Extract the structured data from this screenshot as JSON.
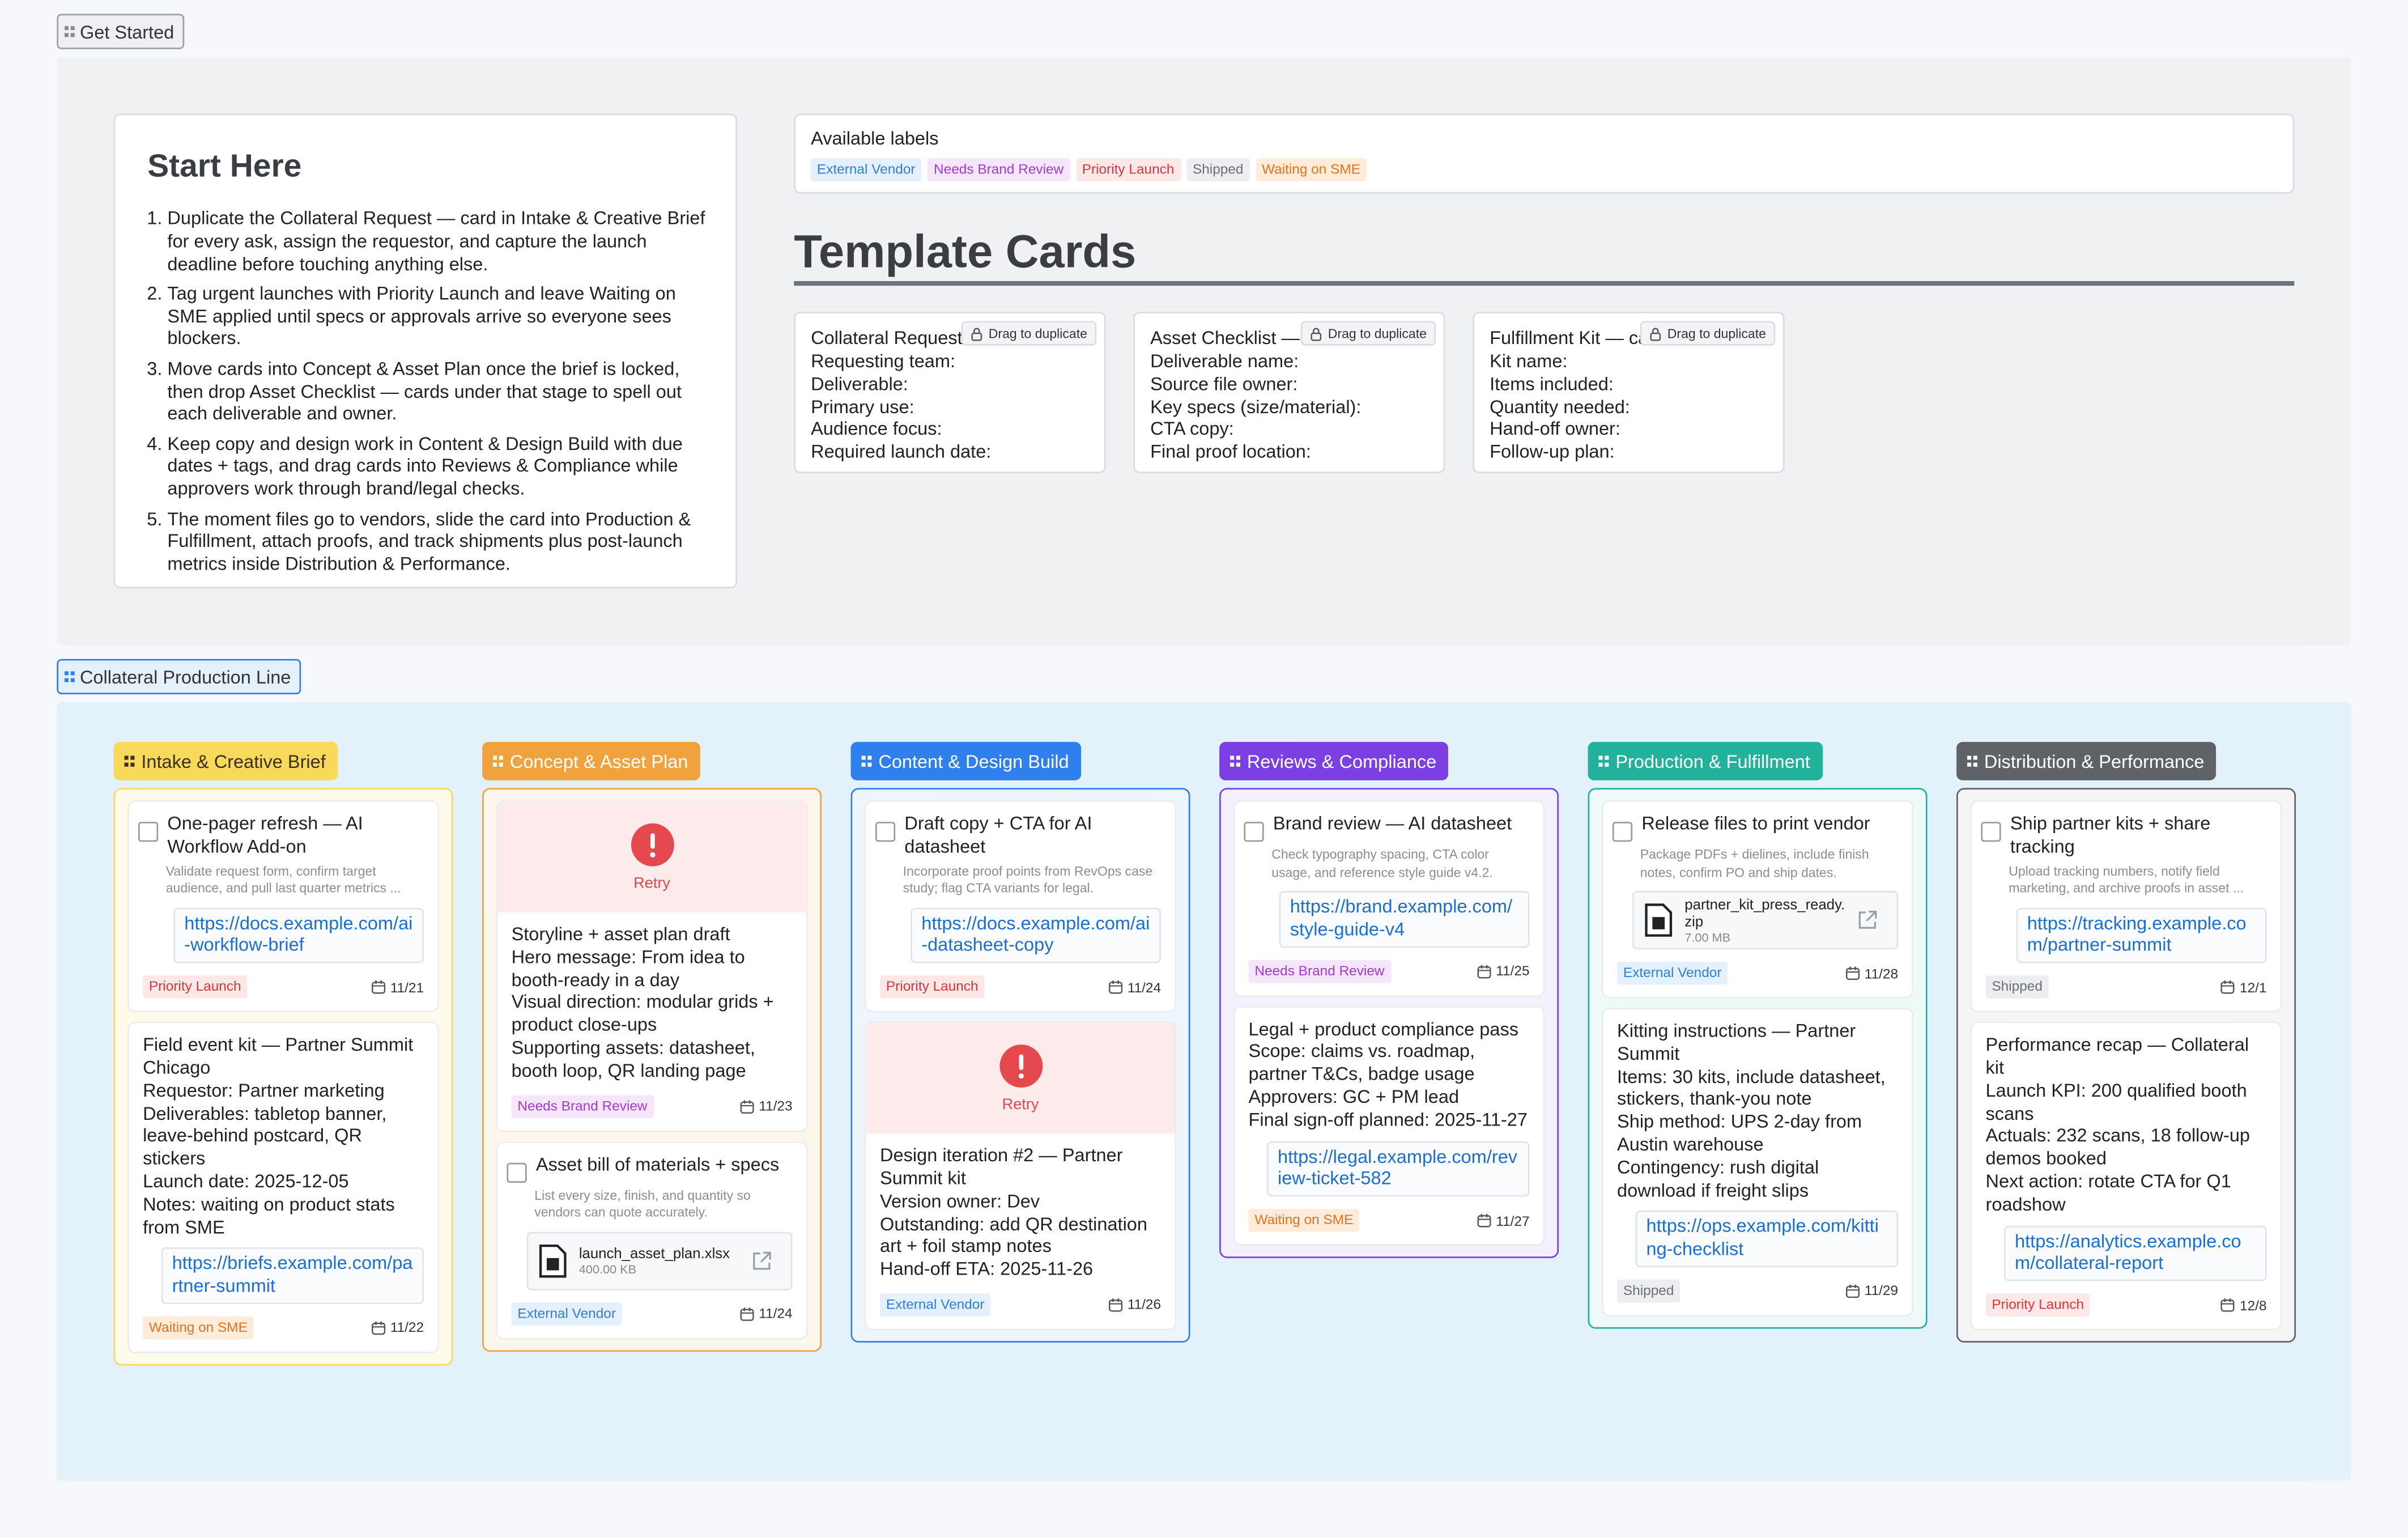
{
  "get_started": {
    "tab": "Get Started",
    "start_here": {
      "title": "Start Here",
      "steps": [
        "Duplicate the Collateral Request — card in Intake & Creative Brief for every ask, assign the requestor, and capture the launch deadline before touching anything else.",
        "Tag urgent launches with Priority Launch and leave Waiting on SME applied until specs or approvals arrive so everyone sees blockers.",
        "Move cards into Concept & Asset Plan once the brief is locked, then drop Asset Checklist — cards under that stage to spell out each deliverable and owner.",
        "Keep copy and design work in Content & Design Build with due dates + tags, and drag cards into Reviews & Compliance while approvers work through brand/legal checks.",
        "The moment files go to vendors, slide the card into Production & Fulfillment, attach proofs, and track shipments plus post-launch metrics inside Distribution & Performance."
      ]
    },
    "labels": {
      "title": "Available labels",
      "items": [
        {
          "name": "External Vendor",
          "color": "#2f7fd8",
          "background": "#e4f0fc"
        },
        {
          "name": "Needs Brand Review",
          "color": "#a23ccf",
          "background": "#f5e6fb"
        },
        {
          "name": "Priority Launch",
          "color": "#d9363e",
          "background": "#fde8e8"
        },
        {
          "name": "Shipped",
          "color": "#6b6f76",
          "background": "#eceef0"
        },
        {
          "name": "Waiting on SME",
          "color": "#e3741b",
          "background": "#fdecd9"
        }
      ]
    },
    "templates": {
      "title": "Template Cards",
      "cards": [
        {
          "title": "Collateral Request — card",
          "action": "Drag to duplicate",
          "fields": [
            "Requesting team:",
            "Deliverable:",
            "Primary use:",
            "Audience focus:",
            "Required launch date:"
          ]
        },
        {
          "title": "Asset Checklist — card",
          "action": "Drag to duplicate",
          "fields": [
            "Deliverable name:",
            "Source file owner:",
            "Key specs (size/material):",
            "CTA copy:",
            "Final proof location:"
          ]
        },
        {
          "title": "Fulfillment Kit — card",
          "action": "Drag to duplicate",
          "fields": [
            "Kit name:",
            "Items included:",
            "Quantity needed:",
            "Hand-off owner:",
            "Follow-up plan:"
          ]
        }
      ]
    }
  },
  "board": {
    "tab": "Collateral Production Line",
    "columns": [
      {
        "title": "Intake & Creative Brief",
        "color": "#f8d95a",
        "background": "#fffbea",
        "cards": [
          {
            "title": "One-pager refresh — AI Workflow Add-on",
            "description": "Validate request form, confirm target audience, and pull last quarter metrics ...",
            "link": "https://docs.example.com/ai-workflow-brief",
            "label": "Priority Launch",
            "due": "11/21"
          },
          {
            "lines": [
              "Field event kit — Partner Summit Chicago",
              "Requestor: Partner marketing",
              "Deliverables: tabletop banner, leave-behind postcard, QR stickers",
              "Launch date: 2025-12-05",
              "Notes: waiting on product stats from SME"
            ],
            "link": "https://briefs.example.com/partner-summit",
            "label": "Waiting on SME",
            "due": "11/22"
          }
        ]
      },
      {
        "title": "Concept & Asset Plan",
        "color": "#f0a33c",
        "background": "#fdf6ec",
        "cards": [
          {
            "status": "Retry",
            "lines": [
              "Storyline + asset plan draft",
              "Hero message: From idea to booth-ready in a day",
              "Visual direction: modular grids + product close-ups",
              "Supporting assets: datasheet, booth loop, QR landing page"
            ],
            "label": "Needs Brand Review",
            "due": "11/23"
          },
          {
            "title": "Asset bill of materials + specs",
            "description": "List every size, finish, and quantity so vendors can quote accurately.",
            "attachment": {
              "name": "launch_asset_plan.xlsx",
              "size": "400.00 KB"
            },
            "label": "External Vendor",
            "due": "11/24"
          }
        ]
      },
      {
        "title": "Content & Design Build",
        "color": "#2f80ed",
        "background": "#eef5fd",
        "cards": [
          {
            "title": "Draft copy + CTA for AI datasheet",
            "description": "Incorporate proof points from RevOps case study; flag CTA variants for legal.",
            "link": "https://docs.example.com/ai-datasheet-copy",
            "label": "Priority Launch",
            "due": "11/24"
          },
          {
            "status": "Retry",
            "lines": [
              "Design iteration #2 — Partner Summit kit",
              "Version owner: Dev",
              "Outstanding: add QR destination art + foil stamp notes",
              "Hand-off ETA: 2025-11-26"
            ],
            "label": "External Vendor",
            "due": "11/26"
          }
        ]
      },
      {
        "title": "Reviews & Compliance",
        "color": "#7b3fe4",
        "background": "#f5f0fe",
        "cards": [
          {
            "title": "Brand review — AI datasheet",
            "description": "Check typography spacing, CTA color usage, and reference style guide v4.2.",
            "link": "https://brand.example.com/style-guide-v4",
            "label": "Needs Brand Review",
            "due": "11/25"
          },
          {
            "lines": [
              "Legal + product compliance pass",
              "Scope: claims vs. roadmap, partner T&Cs, badge usage",
              "Approvers: GC + PM lead",
              "Final sign-off planned: 2025-11-27"
            ],
            "link": "https://legal.example.com/review-ticket-582",
            "label": "Waiting on SME",
            "due": "11/27"
          }
        ]
      },
      {
        "title": "Production & Fulfillment",
        "color": "#22b29c",
        "background": "#eefaf7",
        "cards": [
          {
            "title": "Release files to print vendor",
            "description": "Package PDFs + dielines, include finish notes, confirm PO and ship dates.",
            "attachment": {
              "name": "partner_kit_press_ready.zip",
              "size": "7.00 MB"
            },
            "label": "External Vendor",
            "due": "11/28"
          },
          {
            "lines": [
              "Kitting instructions — Partner Summit",
              "Items: 30 kits, include datasheet, stickers, thank-you note",
              "Ship method: UPS 2-day from Austin warehouse",
              "Contingency: rush digital download if freight slips"
            ],
            "link": "https://ops.example.com/kitting-checklist",
            "label": "Shipped",
            "due": "11/29"
          }
        ]
      },
      {
        "title": "Distribution & Performance",
        "color": "#5f6368",
        "background": "#f5f5f6",
        "cards": [
          {
            "title": "Ship partner kits + share tracking",
            "description": "Upload tracking numbers, notify field marketing, and archive proofs in asset ...",
            "link": "https://tracking.example.com/partner-summit",
            "label": "Shipped",
            "due": "12/1"
          },
          {
            "lines": [
              "Performance recap — Collateral kit",
              "Launch KPI: 200 qualified booth scans",
              "Actuals: 232 scans, 18 follow-up demos booked",
              "Next action: rotate CTA for Q1 roadshow"
            ],
            "link": "https://analytics.example.com/collateral-report",
            "label": "Priority Launch",
            "due": "12/8"
          }
        ]
      }
    ]
  }
}
